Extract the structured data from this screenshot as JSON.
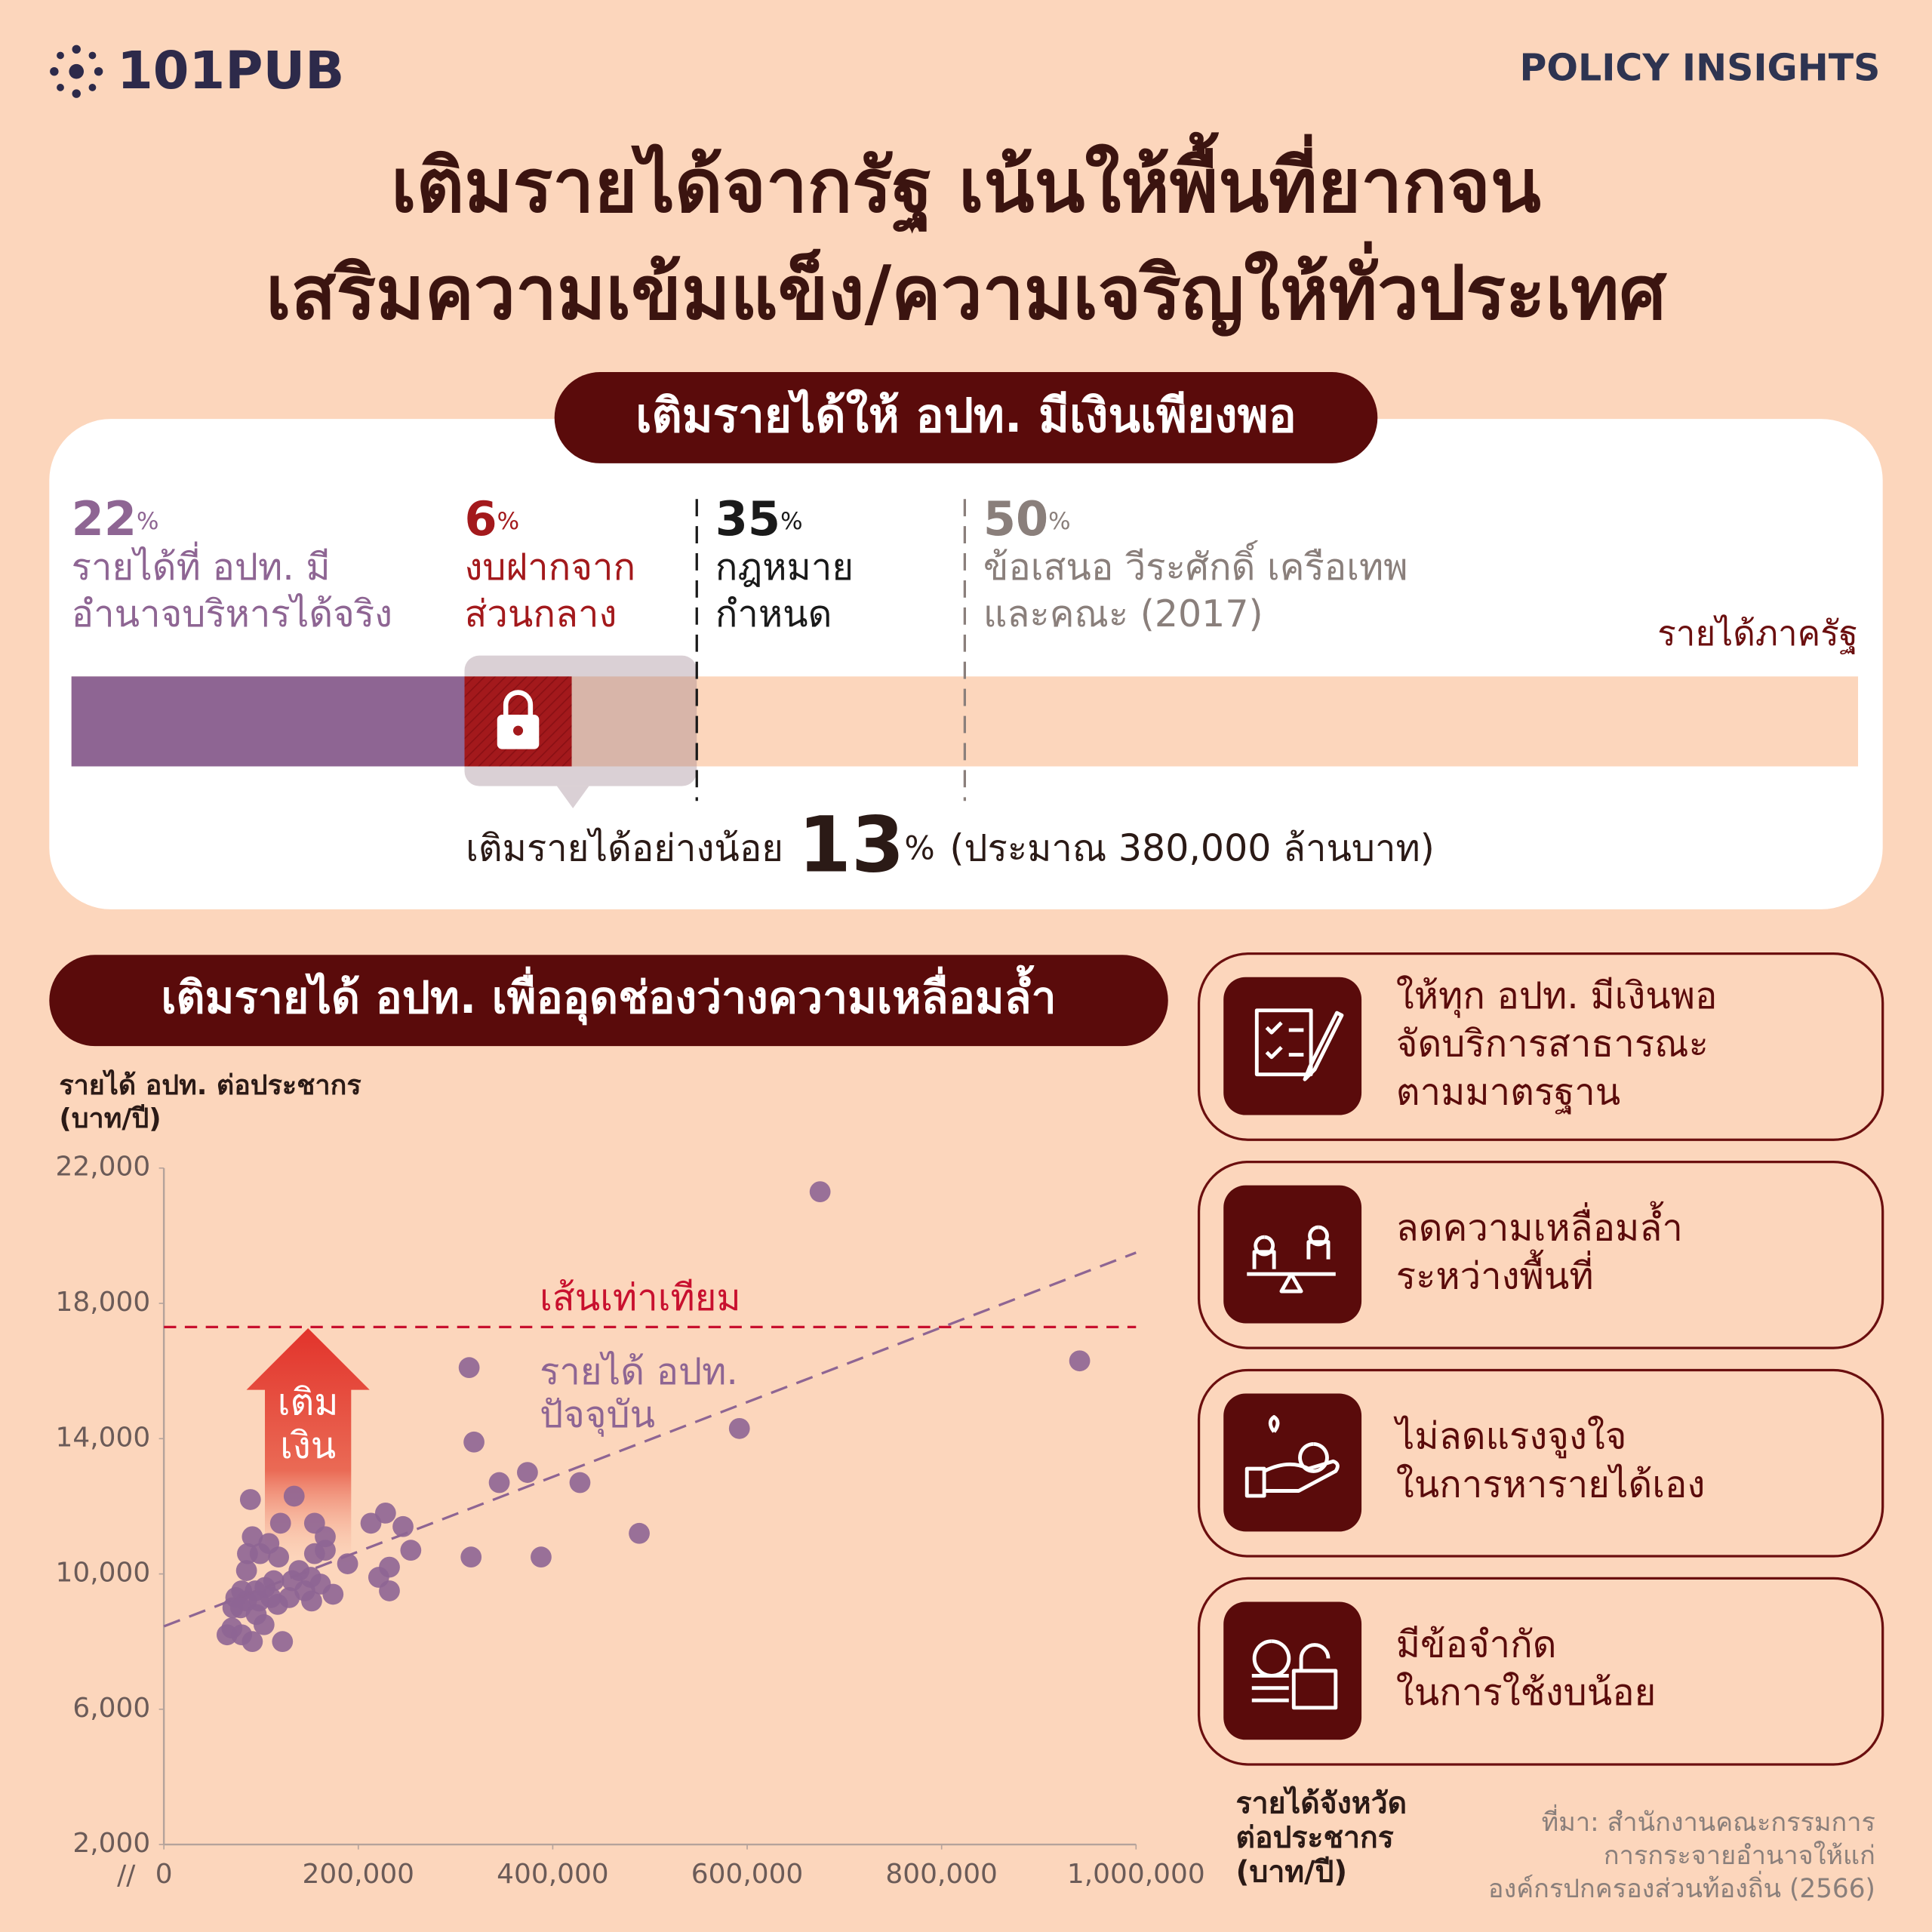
{
  "header": {
    "brand": "101PUB",
    "tag": "POLICY INSIGHTS"
  },
  "title": [
    "เติมรายได้จากรัฐ เน้นให้พื้นที่ยากจน",
    "เสริมความเข้มแข็ง/ความเจริญให้ทั่วประเทศ"
  ],
  "revenue": {
    "heading": "เติมรายได้ให้ อปท. มีเงินเพียงพอ",
    "unit": "%",
    "xlim": [
      0,
      100
    ],
    "segments": [
      {
        "value": 22,
        "label": [
          "รายได้ที่ อปท. มี",
          "อำนาจบริหารได้จริง"
        ],
        "color": "#8e6593"
      },
      {
        "value": 6,
        "label": [
          "งบฝากจาก",
          "ส่วนกลาง"
        ],
        "color": "#a3191c"
      }
    ],
    "markers": [
      {
        "value": 35,
        "label": [
          "กฎหมาย",
          "กำหนด"
        ],
        "color": "#1a1a1a"
      },
      {
        "value": 50,
        "label": [
          "ข้อเสนอ วีระศักดิ์ เครือเทพ",
          "และคณะ (2017)"
        ],
        "color": "#8a7f7b"
      }
    ],
    "total_label": "รายได้ภาครัฐ",
    "gap": {
      "prefix": "เติมรายได้อย่างน้อย",
      "value": 13,
      "suffix": "(ประมาณ 380,000 ล้านบาท)"
    }
  },
  "chart_data": {
    "type": "scatter",
    "title": "เติมรายได้ อปท. เพื่ออุดช่องว่างความเหลื่อมล้ำ",
    "y_label": [
      "รายได้ อปท. ต่อประชากร",
      "(บาท/ปี)"
    ],
    "x_label": [
      "รายได้จังหวัด",
      "ต่อประชากร",
      "(บาท/ปี)"
    ],
    "xlim": [
      0,
      1000000
    ],
    "ylim": [
      2000,
      22000
    ],
    "xticks": [
      0,
      {
        "value": 200000,
        "label": "200,000"
      },
      {
        "value": 400000,
        "label": "400,000"
      },
      {
        "value": 600000,
        "label": "600,000"
      },
      {
        "value": 800000,
        "label": "800,000"
      },
      {
        "value": 1000000,
        "label": "1,000,000"
      }
    ],
    "yticks": [
      {
        "value": 2000,
        "label": "2,000"
      },
      {
        "value": 6000,
        "label": "6,000"
      },
      {
        "value": 10000,
        "label": "10,000"
      },
      {
        "value": 14000,
        "label": "14,000"
      },
      {
        "value": 18000,
        "label": "18,000"
      },
      {
        "value": 22000,
        "label": "22,000"
      }
    ],
    "series": [
      {
        "type": "scatter",
        "color": "#8e6593",
        "x": [
          675000,
          942000,
          314000,
          319000,
          592000,
          345000,
          374000,
          428000,
          489000,
          388000,
          316000,
          254000,
          246000,
          228000,
          213000,
          232000,
          221000,
          232000,
          189000,
          174000,
          166000,
          166000,
          155000,
          155000,
          151000,
          152000,
          134000,
          120000,
          118000,
          122000,
          89000,
          91000,
          86000,
          99000,
          108000,
          113000,
          104000,
          85000,
          80000,
          74000,
          71000,
          70000,
          65000,
          80000,
          91000,
          95000,
          103000,
          117000,
          129000,
          132000,
          139000,
          145000,
          161000,
          85000,
          98000,
          110000,
          79000,
          94000
        ],
        "y": [
          21300,
          16300,
          16100,
          13900,
          14300,
          12700,
          13000,
          12700,
          11200,
          10500,
          10500,
          10700,
          11400,
          11800,
          11500,
          10200,
          9900,
          9500,
          10300,
          9400,
          10700,
          11100,
          10600,
          11500,
          9900,
          9200,
          12300,
          11500,
          10500,
          8000,
          12200,
          11100,
          10600,
          10600,
          10900,
          9800,
          9600,
          10100,
          9500,
          9300,
          9000,
          8400,
          8200,
          8200,
          8000,
          8800,
          8500,
          9100,
          9300,
          9800,
          10100,
          9500,
          9700,
          9200,
          9200,
          9300,
          9000,
          9500
        ]
      },
      {
        "type": "line",
        "name": [
          "รายได้ อปท.",
          "ปัจจุบัน"
        ],
        "color": "#8e6593",
        "x": [
          0,
          1000000
        ],
        "y": [
          8450,
          19500
        ]
      }
    ],
    "reference_line": {
      "name": "เส้นเท่าเทียม",
      "value": 17300,
      "color": "#c8102e"
    },
    "annotation": [
      "เติม",
      "เงิน"
    ]
  },
  "cards": [
    {
      "text": [
        "ให้ทุก อปท. มีเงินพอ",
        "จัดบริการสาธารณะ",
        "ตามมาตรฐาน"
      ]
    },
    {
      "text": [
        "ลดความเหลื่อมล้ำ",
        "ระหว่างพื้นที่"
      ]
    },
    {
      "text": [
        "ไม่ลดแรงจูงใจ",
        "ในการหารายได้เอง"
      ]
    },
    {
      "text": [
        "มีข้อจำกัด",
        "ในการใช้งบน้อย"
      ]
    }
  ],
  "source": [
    "ที่มา: สำนักงานคณะกรรมการ",
    "การกระจายอำนาจให้แก่",
    "องค์กรปกครองส่วนท้องถิ่น (2566)"
  ]
}
